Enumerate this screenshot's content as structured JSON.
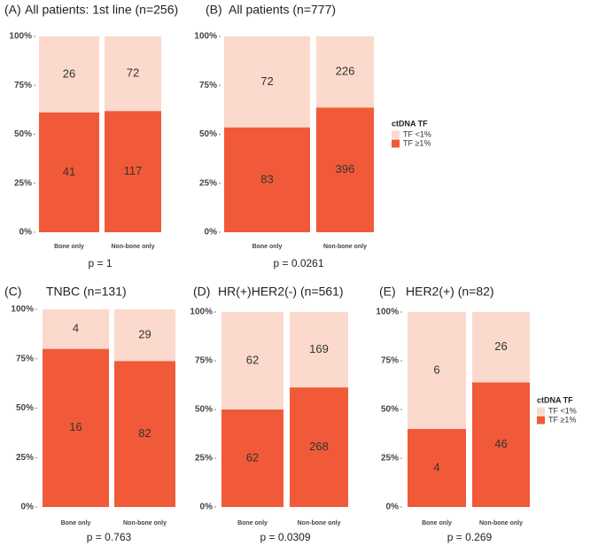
{
  "chart_data": [
    {
      "type": "bar",
      "stacking": "percent",
      "panel": "(A)",
      "title": "All patients: 1st line (n=256)",
      "categories": [
        "Bone only",
        "Non-bone only"
      ],
      "series": [
        {
          "color": "#f15a38",
          "values": [
            41,
            117
          ]
        },
        {
          "color": "#fbd9cc",
          "values": [
            26,
            72
          ]
        }
      ],
      "ylim": [
        0,
        100
      ],
      "yticks": [
        {
          "value": 0,
          "label": "0%"
        },
        {
          "value": 25,
          "label": "25%"
        },
        {
          "value": 50,
          "label": "50%"
        },
        {
          "value": 75,
          "label": "75%"
        },
        {
          "value": 100,
          "label": "100%"
        }
      ],
      "annotation": "p = 1",
      "legend": false
    },
    {
      "type": "bar",
      "stacking": "percent",
      "panel": "(B)",
      "title": "All patients (n=777)",
      "categories": [
        "Bone only",
        "Non-bone only"
      ],
      "series": [
        {
          "name": "TF ≥1%",
          "color": "#f15a38",
          "values": [
            83,
            396
          ]
        },
        {
          "name": "TF <1%",
          "color": "#fbd9cc",
          "values": [
            72,
            226
          ]
        }
      ],
      "ylim": [
        0,
        100
      ],
      "yticks": [
        {
          "value": 0,
          "label": "0%"
        },
        {
          "value": 25,
          "label": "25%"
        },
        {
          "value": 50,
          "label": "50%"
        },
        {
          "value": 75,
          "label": "75%"
        },
        {
          "value": 100,
          "label": "100%"
        }
      ],
      "annotation": "p = 0.0261",
      "legend": "right",
      "legend_title": "ctDNA TF"
    },
    {
      "type": "bar",
      "stacking": "percent",
      "panel": "(C)",
      "title": "TNBC (n=131)",
      "categories": [
        "Bone only",
        "Non-bone only"
      ],
      "series": [
        {
          "color": "#f15a38",
          "values": [
            16,
            82
          ]
        },
        {
          "color": "#fbd9cc",
          "values": [
            4,
            29
          ]
        }
      ],
      "ylim": [
        0,
        100
      ],
      "yticks": [
        {
          "value": 0,
          "label": "0%"
        },
        {
          "value": 25,
          "label": "25%"
        },
        {
          "value": 50,
          "label": "50%"
        },
        {
          "value": 75,
          "label": "75%"
        },
        {
          "value": 100,
          "label": "100%"
        }
      ],
      "annotation": "p = 0.763",
      "legend": false
    },
    {
      "type": "bar",
      "stacking": "percent",
      "panel": "(D)",
      "title": "HR(+)HER2(-) (n=561)",
      "categories": [
        "Bone only",
        "Non-bone only"
      ],
      "series": [
        {
          "color": "#f15a38",
          "values": [
            62,
            268
          ]
        },
        {
          "color": "#fbd9cc",
          "values": [
            62,
            169
          ]
        }
      ],
      "ylim": [
        0,
        100
      ],
      "yticks": [
        {
          "value": 0,
          "label": "0%"
        },
        {
          "value": 25,
          "label": "25%"
        },
        {
          "value": 50,
          "label": "50%"
        },
        {
          "value": 75,
          "label": "75%"
        },
        {
          "value": 100,
          "label": "100%"
        }
      ],
      "annotation": "p = 0.0309",
      "legend": false
    },
    {
      "type": "bar",
      "stacking": "percent",
      "panel": "(E)",
      "title": "HER2(+) (n=82)",
      "categories": [
        "Bone only",
        "Non-bone only"
      ],
      "series": [
        {
          "name": "TF ≥1%",
          "color": "#f15a38",
          "values": [
            4,
            46
          ]
        },
        {
          "name": "TF <1%",
          "color": "#fbd9cc",
          "values": [
            6,
            26
          ]
        }
      ],
      "ylim": [
        0,
        100
      ],
      "yticks": [
        {
          "value": 0,
          "label": "0%"
        },
        {
          "value": 25,
          "label": "25%"
        },
        {
          "value": 50,
          "label": "50%"
        },
        {
          "value": 75,
          "label": "75%"
        },
        {
          "value": 100,
          "label": "100%"
        }
      ],
      "annotation": "p = 0.269",
      "legend": "right",
      "legend_title": "ctDNA TF"
    }
  ]
}
